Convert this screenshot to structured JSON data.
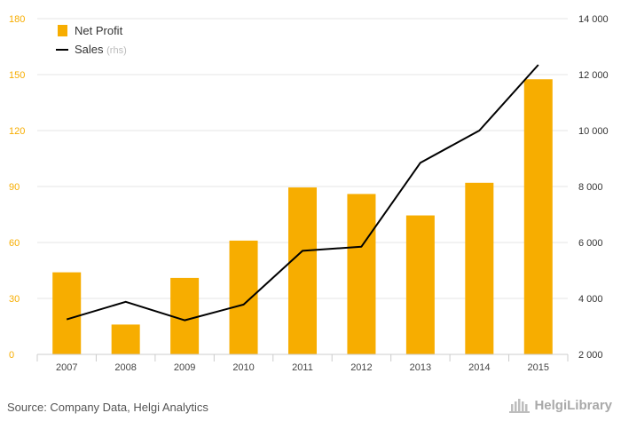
{
  "footer": {
    "source": "Source: Company Data, Helgi Analytics",
    "brand": "HelgiLibrary"
  },
  "colors": {
    "bar": "#f7ad00",
    "line": "#000000",
    "left_axis_text": "#f7ad00",
    "right_axis_text": "#333333",
    "grid": "#e4e4e4",
    "muted": "#bbbbbb"
  },
  "chart_data": {
    "type": "bar",
    "categories": [
      "2007",
      "2008",
      "2009",
      "2010",
      "2011",
      "2012",
      "2013",
      "2014",
      "2015"
    ],
    "series": [
      {
        "name": "Net Profit",
        "type": "bar",
        "axis": "left",
        "values": [
          44,
          16,
          41,
          61,
          89.5,
          86,
          74.5,
          92,
          147.5
        ]
      },
      {
        "name": "Sales",
        "suffix": "(rhs)",
        "type": "line",
        "axis": "right",
        "values": [
          3250,
          3880,
          3220,
          3780,
          5700,
          5850,
          8850,
          10000,
          12350
        ]
      }
    ],
    "y_left": {
      "range": [
        0,
        180
      ],
      "ticks": [
        "0",
        "30",
        "60",
        "90",
        "120",
        "150",
        "180"
      ]
    },
    "y_right": {
      "range": [
        2000,
        14000
      ],
      "ticks": [
        "2 000",
        "4 000",
        "6 000",
        "8 000",
        "10 000",
        "12 000",
        "14 000"
      ]
    },
    "legend": {
      "placement": "top-left"
    },
    "grid": true
  }
}
